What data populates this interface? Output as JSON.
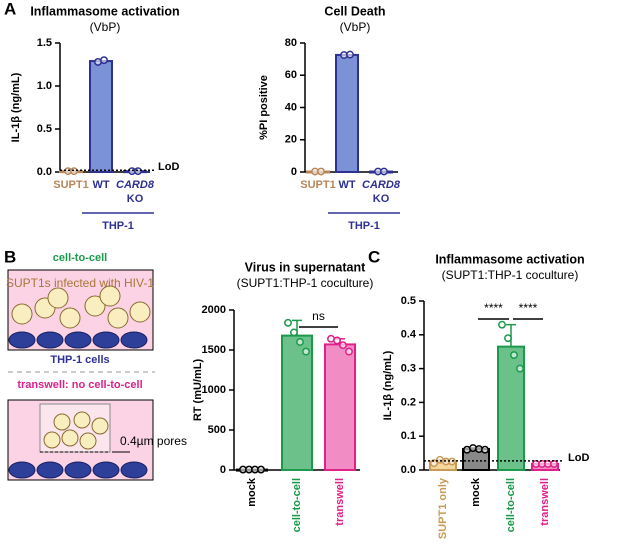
{
  "panels": [
    "A",
    "B",
    "C"
  ],
  "diagram": {
    "cell_to_cell": "cell-to-cell",
    "infected": "SUPT1s infected with HIV-1",
    "thp1": "THP-1 cells",
    "transwell": "transwell: no cell-to-cell",
    "pores": "0.4µm pores"
  },
  "chart_data": [
    {
      "type": "bar",
      "title": "Inflammasome activation",
      "subtitle": "(VbP)",
      "ylabel": "IL-1β (ng/mL)",
      "categories": [
        "SUPT1",
        "WT",
        "CARD8 KO"
      ],
      "values": [
        0.01,
        1.29,
        0.01
      ],
      "points": [
        [
          0.01,
          0.01
        ],
        [
          1.28,
          1.3
        ],
        [
          0.01,
          0.01
        ]
      ],
      "colors": [
        "#b8865a",
        "#2e3192",
        "#2e3192"
      ],
      "fills": [
        "#ffffff",
        "#7b93d6",
        "#7b93d6"
      ],
      "ylim": [
        0,
        1.5
      ],
      "yticks": [
        {
          "value": 0,
          "label": "0.0"
        },
        {
          "value": 0.5,
          "label": "0.5"
        },
        {
          "value": 1,
          "label": "1.0"
        },
        {
          "value": 1.5,
          "label": "1.5"
        }
      ],
      "lod": 0.02,
      "lod_label": "LoD",
      "group": {
        "label": "THP-1",
        "from": 1,
        "to": 2
      }
    },
    {
      "type": "bar",
      "title": "Cell Death",
      "subtitle": "(VbP)",
      "ylabel": "%PI positive",
      "categories": [
        "SUPT1",
        "WT",
        "CARD8 KO"
      ],
      "values": [
        0.3,
        72.6,
        0.3
      ],
      "points": [
        [
          0.3,
          0.3
        ],
        [
          72.5,
          72.8
        ],
        [
          0.3,
          0.3
        ]
      ],
      "colors": [
        "#b8865a",
        "#2e3192",
        "#2e3192"
      ],
      "fills": [
        "#ffffff",
        "#7b93d6",
        "#7b93d6"
      ],
      "ylim": [
        0,
        80
      ],
      "yticks": [
        0,
        20,
        40,
        60,
        80
      ],
      "group": {
        "label": "THP-1",
        "from": 1,
        "to": 2
      }
    },
    {
      "type": "bar",
      "title": "Virus in supernatant",
      "subtitle": "(SUPT1:THP-1 coculture)",
      "ylabel": "RT (mU/mL)",
      "categories": [
        "mock",
        "cell-to-cell",
        "transwell"
      ],
      "values": [
        5,
        1680,
        1570
      ],
      "errors": [
        0,
        190,
        70
      ],
      "points": [
        [
          5,
          5,
          5,
          5
        ],
        [
          1840,
          1720,
          1600,
          1480
        ],
        [
          1640,
          1620,
          1560,
          1480
        ]
      ],
      "colors": [
        "#000000",
        "#1a9a4a",
        "#e0218a"
      ],
      "fills": [
        "#888888",
        "#6cc08a",
        "#f28cc4"
      ],
      "ylim": [
        0,
        2000
      ],
      "yticks": [
        0,
        500,
        1000,
        1500,
        2000
      ],
      "annotations": [
        {
          "text": "ns",
          "from": 1,
          "to": 2
        }
      ]
    },
    {
      "type": "bar",
      "title": "Inflammasome activation",
      "subtitle": "(SUPT1:THP-1 coculture)",
      "ylabel": "IL-1β (ng/mL)",
      "categories": [
        "SUPT1 only",
        "mock",
        "cell-to-cell",
        "transwell"
      ],
      "values": [
        0.025,
        0.062,
        0.365,
        0.018
      ],
      "errors": [
        0.005,
        0.003,
        0.065,
        0.001
      ],
      "points": [
        [
          0.02,
          0.03,
          0.025,
          0.025
        ],
        [
          0.06,
          0.065,
          0.062,
          0.06
        ],
        [
          0.43,
          0.39,
          0.34,
          0.3
        ],
        [
          0.018,
          0.018,
          0.018,
          0.018
        ]
      ],
      "colors": [
        "#c89a55",
        "#000000",
        "#1a9a4a",
        "#e0218a"
      ],
      "fills": [
        "#f5d8a0",
        "#888888",
        "#6cc08a",
        "#f28cc4"
      ],
      "ylim": [
        0,
        0.5
      ],
      "yticks": [
        {
          "value": 0,
          "label": "0.0"
        },
        {
          "value": 0.1,
          "label": "0.1"
        },
        {
          "value": 0.2,
          "label": "0.2"
        },
        {
          "value": 0.3,
          "label": "0.3"
        },
        {
          "value": 0.4,
          "label": "0.4"
        },
        {
          "value": 0.5,
          "label": "0.5"
        }
      ],
      "lod": 0.027,
      "lod_label": "LoD",
      "annotations": [
        {
          "text": "****",
          "from": 1,
          "to": 2
        },
        {
          "text": "****",
          "from": 2,
          "to": 3
        }
      ]
    }
  ]
}
